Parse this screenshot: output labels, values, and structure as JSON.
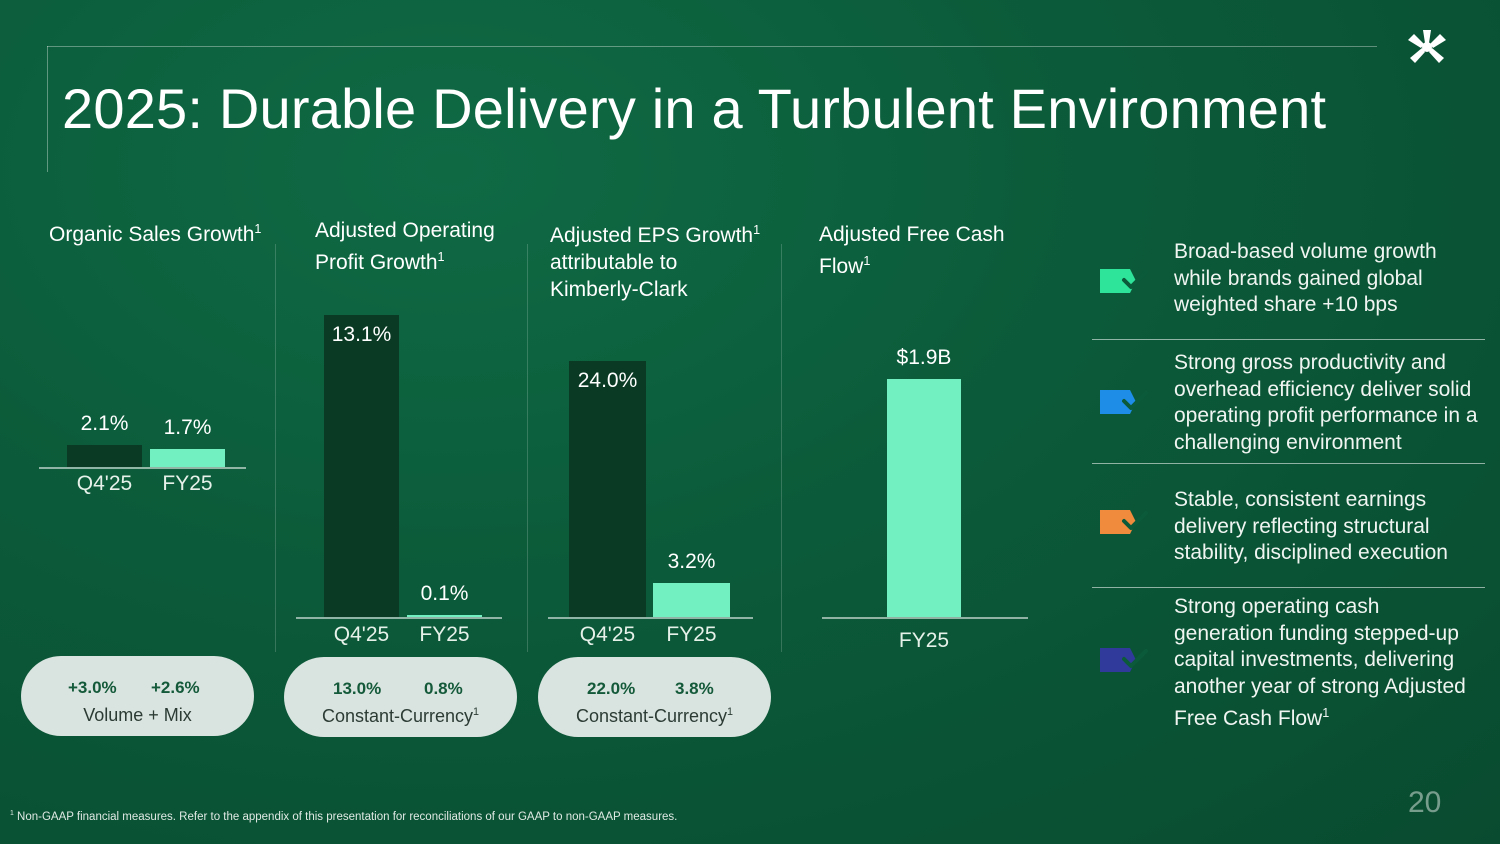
{
  "title": "2025: Durable Delivery in a Turbulent  Environment",
  "colors": {
    "background": "#0b5a39",
    "bar_dark": "#0a3a24",
    "bar_mint": "#73f0c2",
    "pill": "#d9e3df",
    "check_teal": "#2ee39a",
    "check_blue": "#1e8de8",
    "check_orange": "#f08a3c",
    "check_navy": "#2f3a9a"
  },
  "chart_data": [
    {
      "type": "bar",
      "title": "Organic Sales Growth",
      "title_sup": "1",
      "categories": [
        "Q4'25",
        "FY25"
      ],
      "values": [
        2.1,
        1.7
      ],
      "value_labels": [
        "2.1%",
        "1.7%"
      ],
      "unit": "%",
      "ylim": [
        0,
        13.5
      ]
    },
    {
      "type": "bar",
      "title": "Adjusted Operating Profit Growth",
      "title_sup": "1",
      "categories": [
        "Q4'25",
        "FY25"
      ],
      "values": [
        13.1,
        0.1
      ],
      "value_labels": [
        "13.1%",
        "0.1%"
      ],
      "unit": "%",
      "ylim": [
        0,
        13.5
      ]
    },
    {
      "type": "bar",
      "title": "Adjusted EPS Growth attributable to Kimberly-Clark",
      "title_sup": "1",
      "categories": [
        "Q4'25",
        "FY25"
      ],
      "values": [
        24.0,
        3.2
      ],
      "value_labels": [
        "24.0%",
        "3.2%"
      ],
      "unit": "%",
      "ylim": [
        0,
        26.5
      ]
    },
    {
      "type": "bar",
      "title": "Adjusted Free Cash Flow",
      "title_sup": "1",
      "categories": [
        "FY25"
      ],
      "values": [
        1.9
      ],
      "value_labels": [
        "$1.9B"
      ],
      "unit": "$B",
      "ylim": [
        0,
        2.35
      ]
    }
  ],
  "panels": {
    "p1": {
      "title": "Organic Sales Growth",
      "sup": "1"
    },
    "p2": {
      "title_l1": "Adjusted Operating",
      "title_l2": "Profit Growth",
      "sup": "1"
    },
    "p3": {
      "title_l1": "Adjusted EPS Growth",
      "title_l2": "attributable to",
      "title_l3": "Kimberly-Clark",
      "sup": "1"
    },
    "p4": {
      "title_l1": "Adjusted Free Cash",
      "title_l2": "Flow",
      "sup": "1"
    }
  },
  "pills": [
    {
      "v1": "+3.0%",
      "v2": "+2.6%",
      "label": "Volume + Mix",
      "sup": ""
    },
    {
      "v1": "13.0%",
      "v2": "0.8%",
      "label": "Constant-Currency",
      "sup": "1"
    },
    {
      "v1": "22.0%",
      "v2": "3.8%",
      "label": "Constant-Currency",
      "sup": "1"
    }
  ],
  "bullets": [
    {
      "text": "Broad-based volume growth while brands gained global weighted share +10 bps",
      "sup": "",
      "icon": "check-icon",
      "color": "#2ee39a"
    },
    {
      "text": "Strong gross productivity and overhead efficiency deliver solid operating profit performance in a challenging environment",
      "sup": "",
      "icon": "check-icon",
      "color": "#1e8de8"
    },
    {
      "text": "Stable, consistent earnings delivery reflecting structural stability, disciplined execution",
      "sup": "",
      "icon": "check-icon",
      "color": "#f08a3c"
    },
    {
      "text": "Strong operating cash generation funding stepped-up capital investments, delivering another year of strong Adjusted Free Cash Flow",
      "sup": "1",
      "icon": "check-icon",
      "color": "#2f3a9a"
    }
  ],
  "footnote": {
    "sup": "1",
    "text": " Non-GAAP financial measures. Refer to the appendix of this presentation for reconciliations of our GAAP to non-GAAP measures."
  },
  "page_number": "20",
  "logo_icon": "kimberly-clark-logo-icon"
}
